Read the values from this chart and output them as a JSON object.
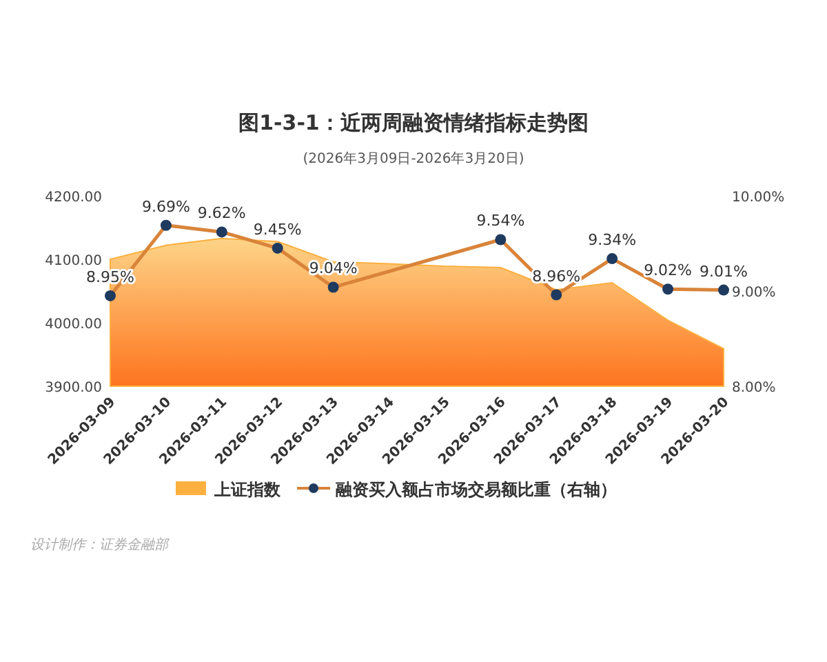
{
  "chart_data": {
    "type": "area",
    "title": "图1-3-1：近两周融资情绪指标走势图",
    "subtitle": "(2026年3月09日-2026年3月20日)",
    "categories": [
      "2026-03-09",
      "2026-03-10",
      "2026-03-11",
      "2026-03-12",
      "2026-03-13",
      "2026-03-14",
      "2026-03-15",
      "2026-03-16",
      "2026-03-17",
      "2026-03-18",
      "2026-03-19",
      "2026-03-20"
    ],
    "series": [
      {
        "name": "上证指数",
        "color": "#fbb040",
        "values": [
          4100,
          4122,
          4133,
          4128,
          4096,
          4093,
          4089,
          4087,
          4052,
          4063,
          4004,
          3959
        ]
      },
      {
        "name": "融资买入额占市场交易额比重（右轴）",
        "type": "line",
        "axis": "y2",
        "color": "#d9843a",
        "marker": "circle",
        "values": [
          8.95,
          9.69,
          9.62,
          9.45,
          9.04,
          null,
          null,
          9.54,
          8.96,
          9.34,
          9.02,
          9.01
        ],
        "value_labels": [
          "8.95%",
          "9.69%",
          "9.62%",
          "9.45%",
          "9.04%",
          null,
          null,
          "9.54%",
          "8.96%",
          "9.34%",
          "9.02%",
          "9.01%"
        ]
      }
    ],
    "ylim": [
      3900,
      4200
    ],
    "yticks": [
      {
        "value": 3900,
        "label": "3900.00"
      },
      {
        "value": 4000,
        "label": "4000.00"
      },
      {
        "value": 4100,
        "label": "4100.00"
      },
      {
        "value": 4200,
        "label": "4200.00"
      }
    ],
    "y2lim": [
      8,
      10
    ],
    "y2ticks": [
      {
        "value": 8,
        "label": "8.00%"
      },
      {
        "value": 9,
        "label": "9.00%"
      },
      {
        "value": 10,
        "label": "10.00%"
      }
    ],
    "legend": "bottom",
    "grid": false,
    "annotations": [
      "设计制作：证券金融部"
    ]
  }
}
